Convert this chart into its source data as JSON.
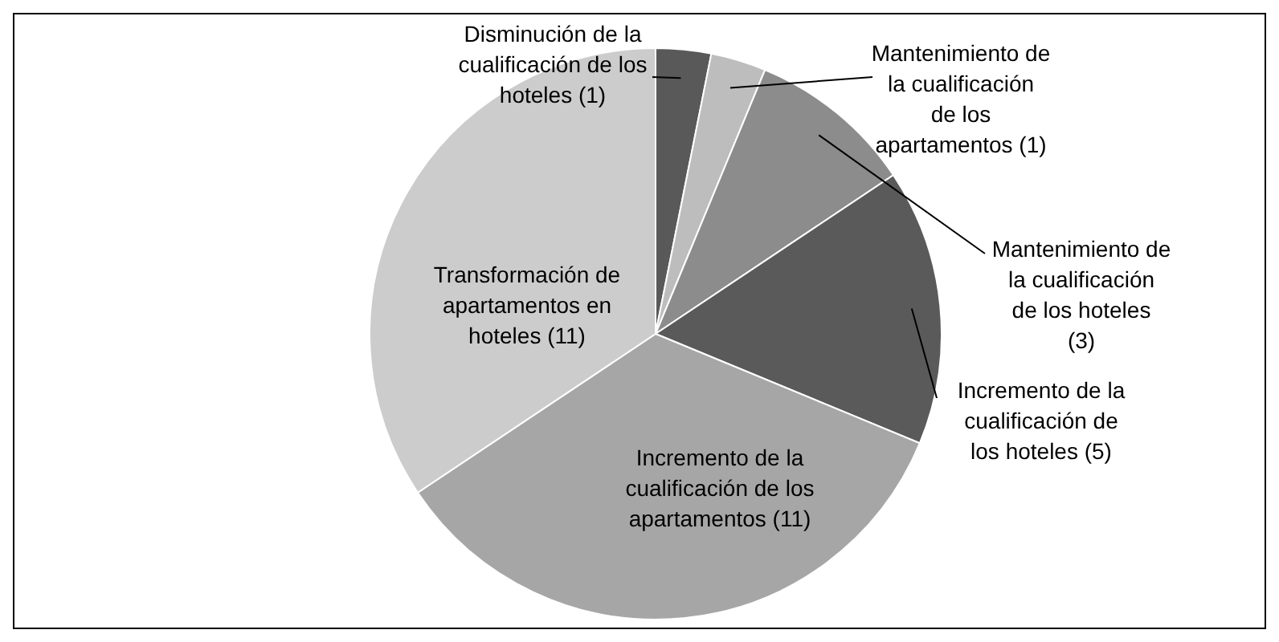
{
  "chart_data": {
    "type": "pie",
    "categories": [
      "Disminución de la cualificación de los hoteles (1)",
      "Mantenimiento de la cualificación de los apartamentos (1)",
      "Mantenimiento de la cualificación de los hoteles (3)",
      "Incremento de la cualificación de los hoteles (5)",
      "Incremento de la cualificación de los apartamentos (11)",
      "Transformación de apartamentos en hoteles (11)"
    ],
    "values": [
      1,
      1,
      3,
      5,
      11,
      11
    ],
    "colors": [
      "#595959",
      "#bdbdbd",
      "#8c8c8c",
      "#5a5a5a",
      "#a6a6a6",
      "#cccccc"
    ]
  }
}
